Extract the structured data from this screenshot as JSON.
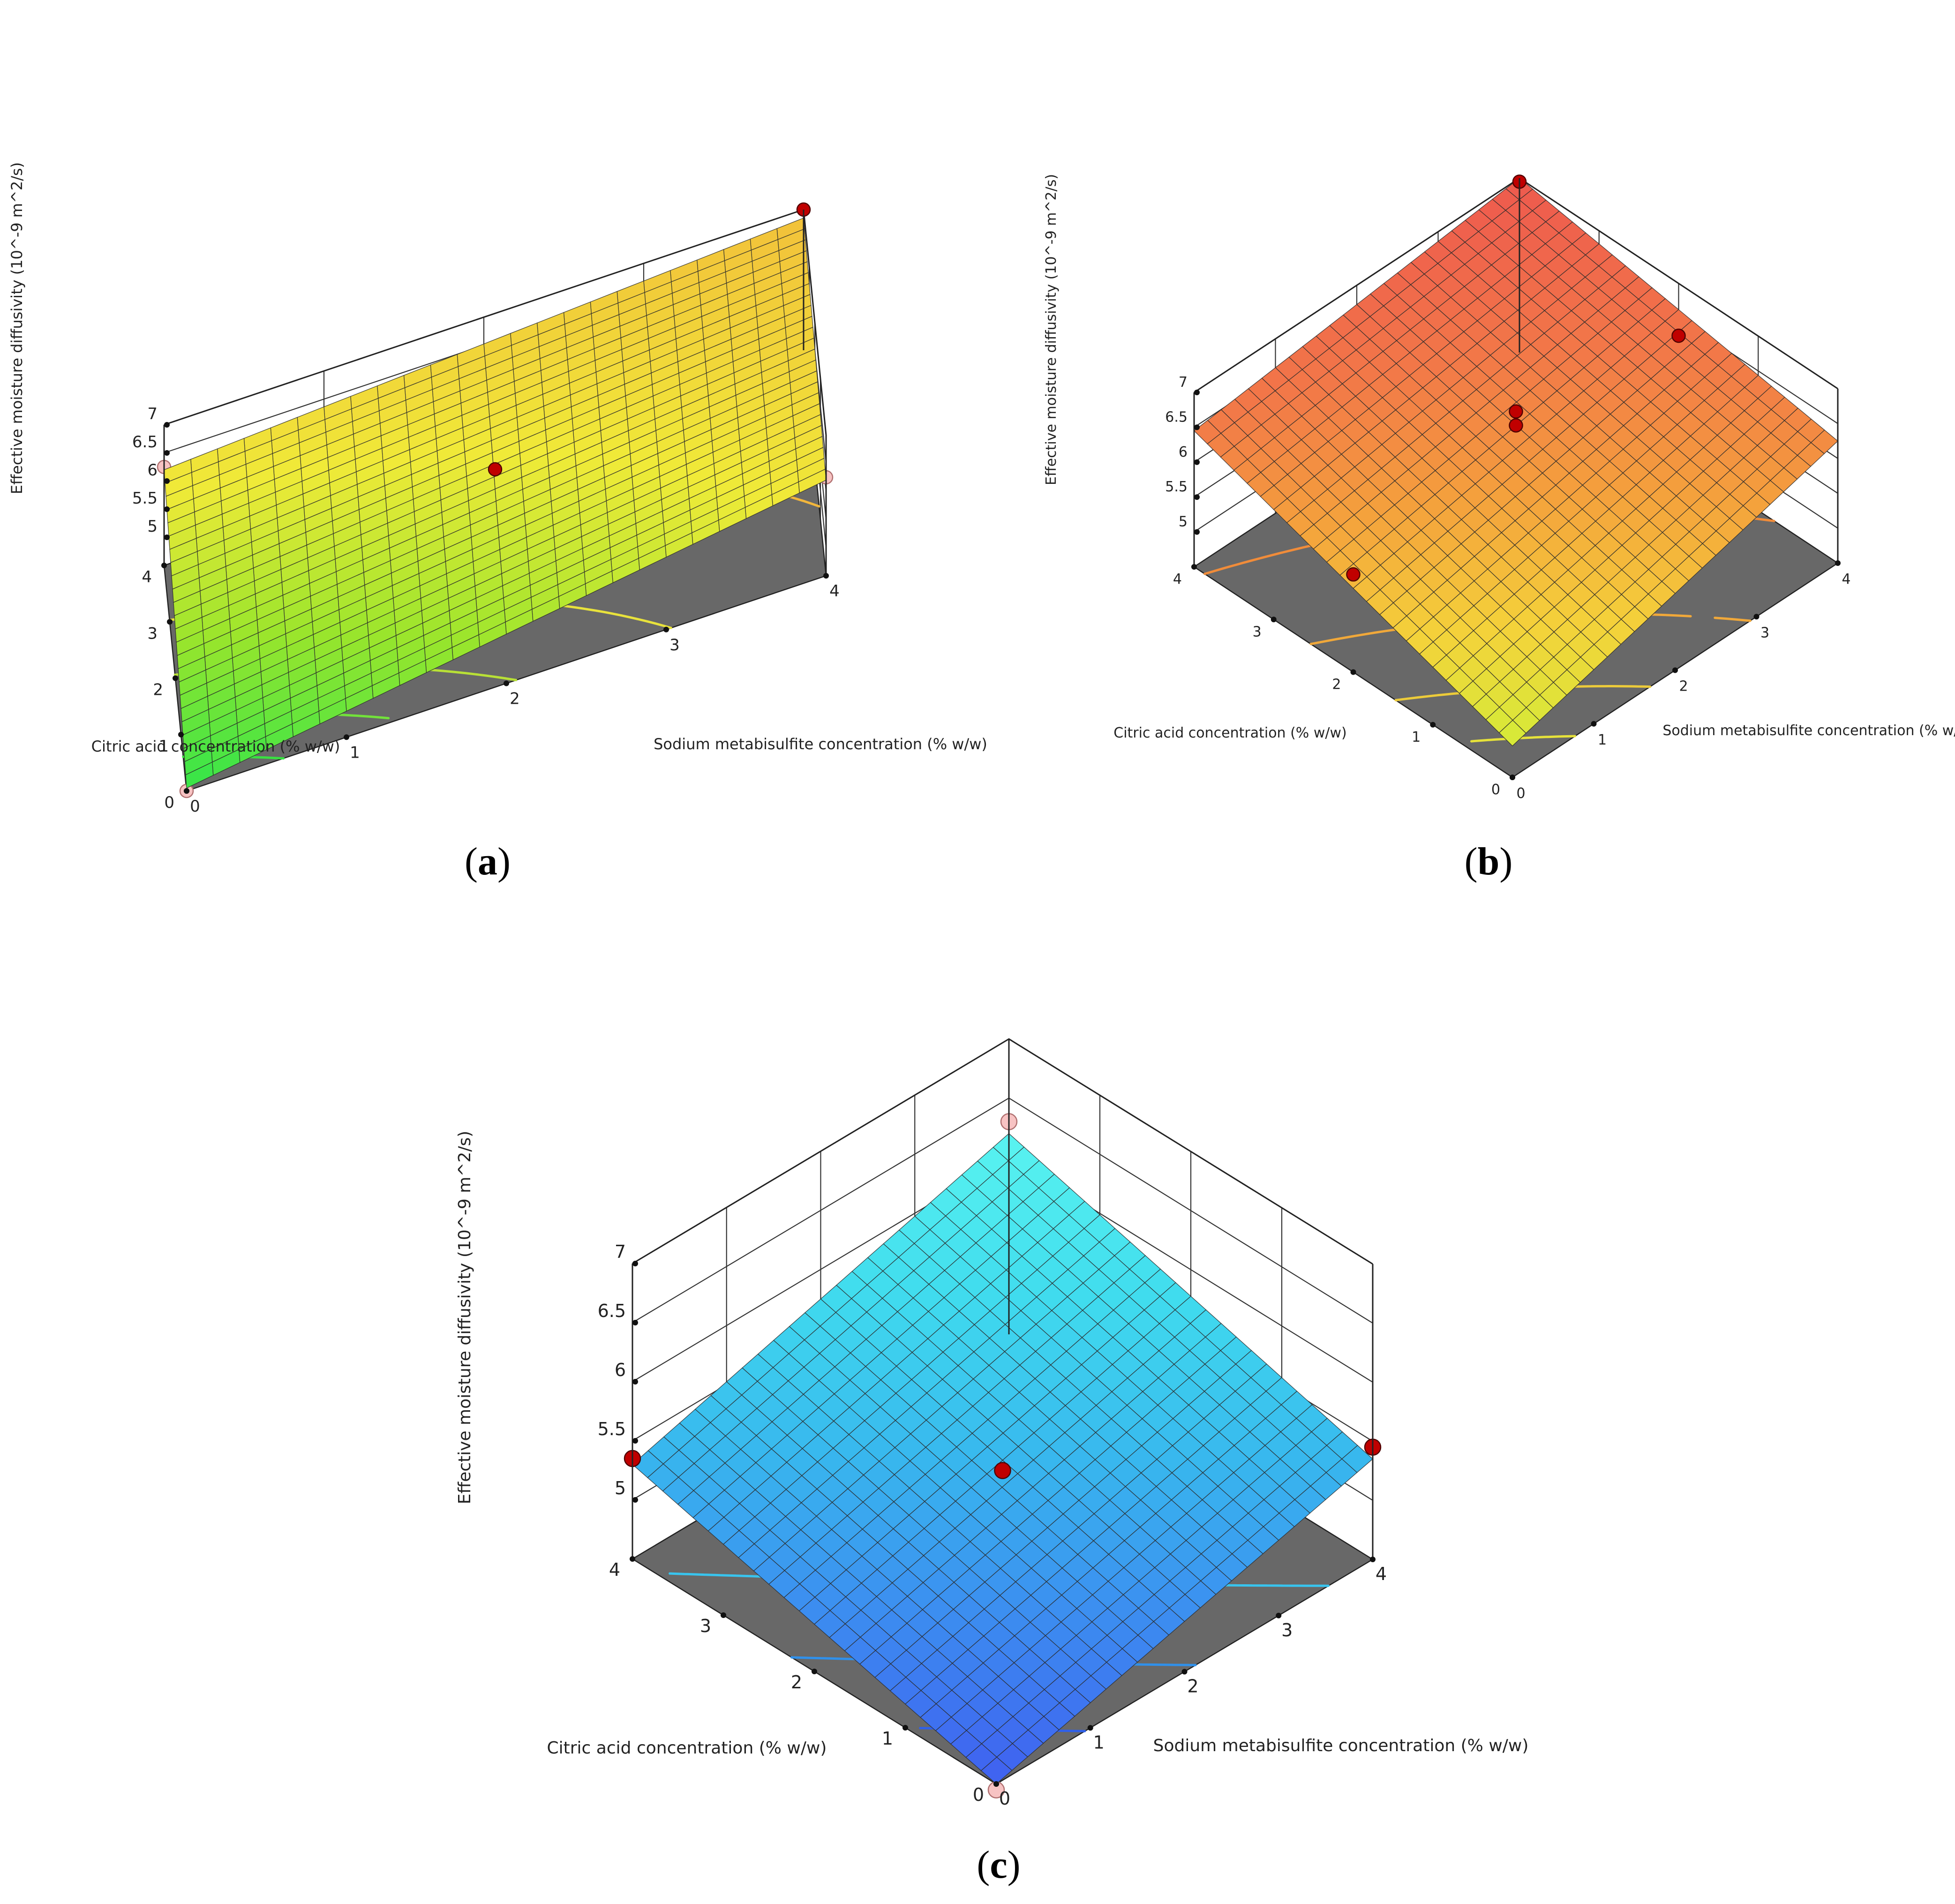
{
  "chart_data": [
    {
      "type": "surface",
      "panel_label": "(a)",
      "panel_letter": "a",
      "xlabel": "Sodium metabisulfite concentration (% w/w)",
      "ylabel": "Citric acid concentration (% w/w)",
      "zlabel": "Effective moisture diffusivity (10^-9 m^2/s)",
      "x_ticks": [
        "0",
        "1",
        "2",
        "3",
        "4"
      ],
      "y_ticks": [
        "0",
        "1",
        "2",
        "3",
        "4"
      ],
      "z_ticks": [
        "5",
        "5.5",
        "6",
        "6.5",
        "7"
      ],
      "xlim": [
        0,
        4
      ],
      "ylim": [
        0,
        4
      ],
      "zlim": [
        4.5,
        7
      ],
      "corner_values": {
        "x0_y0": 4.55,
        "x4_y0": 6.2,
        "x0_y4": 6.2,
        "x4_y4": 6.85
      },
      "colormap": [
        "#33e54a",
        "#9ae52c",
        "#f0ea38",
        "#f2c23a"
      ],
      "floor_color": "#686868",
      "contours": [
        {
          "level": 4.8,
          "color": "#38e040"
        },
        {
          "level": 5.1,
          "color": "#72e23a"
        },
        {
          "level": 5.4,
          "color": "#b8e036"
        },
        {
          "level": 5.8,
          "color": "#e8e23c"
        },
        {
          "level": 6.4,
          "color": "#f2b63c"
        },
        {
          "level": 6.6,
          "color": "#f4a83a"
        }
      ],
      "design_points": [
        {
          "x": 0,
          "y": 0,
          "z": 4.5,
          "position": "below"
        },
        {
          "x": 2,
          "y": 2,
          "z": 6.3,
          "position": "above"
        },
        {
          "x": 4,
          "y": 0,
          "z": 6.25,
          "position": "below"
        },
        {
          "x": 0,
          "y": 4,
          "z": 6.25,
          "position": "below"
        },
        {
          "x": 4,
          "y": 4,
          "z": 7.0,
          "position": "above"
        }
      ]
    },
    {
      "type": "surface",
      "panel_label": "(b)",
      "panel_letter": "b",
      "xlabel": "Sodium metabisulfite concentration (% w/w)",
      "ylabel": "Citric acid concentration (% w/w)",
      "zlabel": "Effective moisture diffusivity (10^-9 m^2/s)",
      "x_ticks": [
        "0",
        "1",
        "2",
        "3",
        "4"
      ],
      "y_ticks": [
        "0",
        "1",
        "2",
        "3",
        "4"
      ],
      "z_ticks": [
        "5",
        "5.5",
        "6",
        "6.5",
        "7"
      ],
      "xlim": [
        0,
        4
      ],
      "ylim": [
        0,
        4
      ],
      "zlim": [
        4.5,
        7
      ],
      "corner_values": {
        "x0_y0": 4.95,
        "x4_y0": 6.25,
        "x0_y4": 6.45,
        "x4_y4": 7.0
      },
      "colormap": [
        "#d4ec38",
        "#f4d23a",
        "#f4a23c",
        "#f27848",
        "#ee5a4e"
      ],
      "floor_color": "#686868",
      "contours": [
        {
          "level": 5.2,
          "color": "#e6e23a"
        },
        {
          "level": 5.5,
          "color": "#eccb3a"
        },
        {
          "level": 5.9,
          "color": "#f0a83a"
        },
        {
          "level": 6.4,
          "color": "#f08c3a"
        },
        {
          "level": 6.75,
          "color": "#ee5e2e"
        }
      ],
      "design_points": [
        {
          "x": 2,
          "y": 2,
          "z": 6.7,
          "position": "above"
        },
        {
          "x": 2,
          "y": 2,
          "z": 6.5,
          "position": "above"
        },
        {
          "x": 4,
          "y": 4,
          "z": 6.95,
          "position": "above"
        },
        {
          "x": 0,
          "y": 2,
          "z": 5.9,
          "position": "above"
        },
        {
          "x": 4,
          "y": 2,
          "z": 6.25,
          "position": "above"
        }
      ]
    },
    {
      "type": "surface",
      "panel_label": "(c)",
      "panel_letter": "c",
      "xlabel": "Sodium metabisulfite concentration (% w/w)",
      "ylabel": "Citric acid concentration (% w/w)",
      "zlabel": "Effective moisture diffusivity (10^-9 m^2/s)",
      "x_ticks": [
        "0",
        "1",
        "2",
        "3",
        "4"
      ],
      "y_ticks": [
        "0",
        "1",
        "2",
        "3",
        "4"
      ],
      "z_ticks": [
        "5",
        "5.5",
        "6",
        "6.5",
        "7"
      ],
      "xlim": [
        0,
        4
      ],
      "ylim": [
        0,
        4
      ],
      "zlim": [
        4.5,
        7
      ],
      "corner_values": {
        "x0_y0": 4.5,
        "x4_y0": 5.35,
        "x0_y4": 5.3,
        "x4_y4": 6.2
      },
      "colormap": [
        "#4060f0",
        "#3c8cf0",
        "#38b8ee",
        "#40dcee",
        "#5af4f0"
      ],
      "floor_color": "#686868",
      "contours": [
        {
          "level": 4.7,
          "color": "#3060e8"
        },
        {
          "level": 4.95,
          "color": "#3090ea"
        },
        {
          "level": 5.25,
          "color": "#38c4ee"
        },
        {
          "level": 5.6,
          "color": "#40dcee"
        },
        {
          "level": 5.8,
          "color": "#50eaf2"
        }
      ],
      "design_points": [
        {
          "x": 0,
          "y": 0,
          "z": 4.45,
          "position": "below"
        },
        {
          "x": 2,
          "y": 2,
          "z": 5.25,
          "position": "above"
        },
        {
          "x": 0,
          "y": 4,
          "z": 5.35,
          "position": "above"
        },
        {
          "x": 4,
          "y": 0,
          "z": 5.45,
          "position": "above"
        },
        {
          "x": 4,
          "y": 4,
          "z": 6.3,
          "position": "below"
        }
      ]
    }
  ]
}
